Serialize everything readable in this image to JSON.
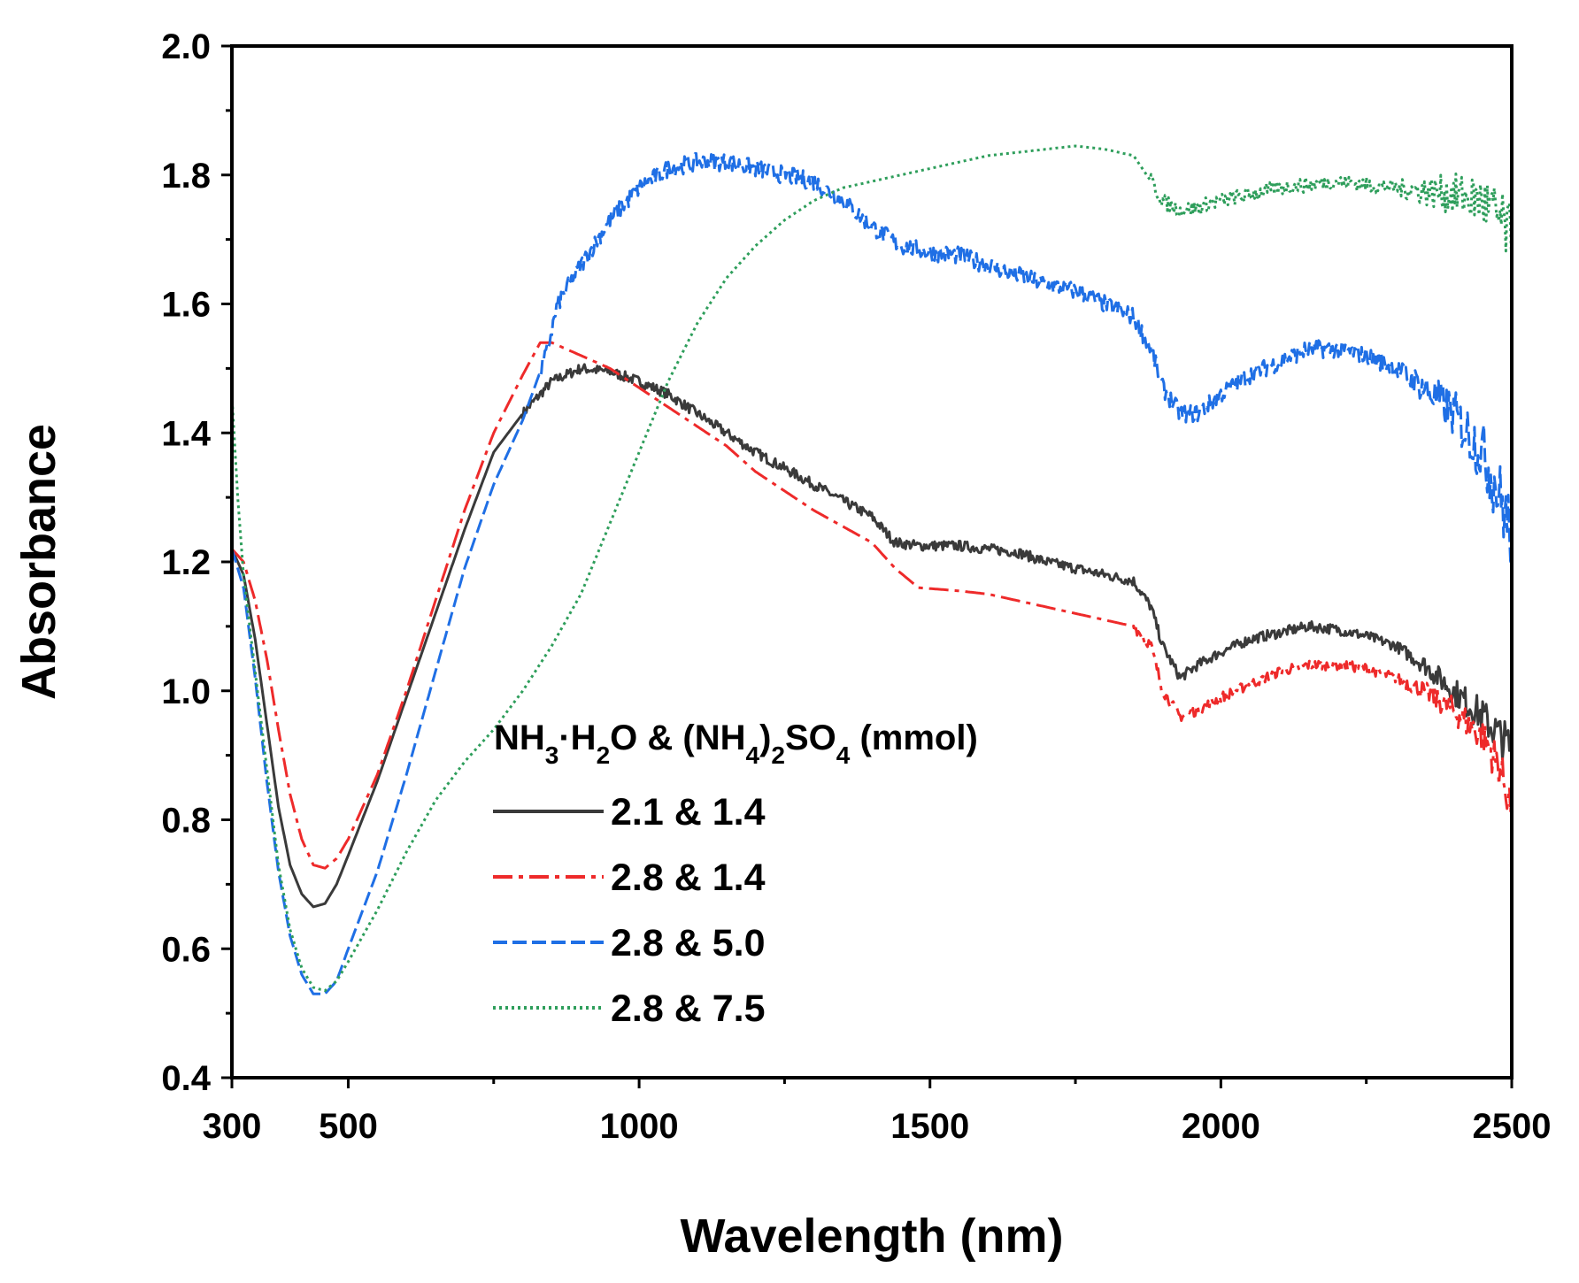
{
  "chart_data": {
    "type": "line",
    "title": "",
    "xlabel": "Wavelength (nm)",
    "ylabel": "Absorbance",
    "xlim": [
      300,
      2500
    ],
    "ylim": [
      0.4,
      2.0
    ],
    "x_ticks": [
      300,
      500,
      1000,
      1500,
      2000,
      2500
    ],
    "x_tick_labels": [
      "300",
      "500",
      "1000",
      "1500",
      "2000",
      "2500"
    ],
    "x_minor_ticks": [
      750,
      1250,
      1750,
      2250
    ],
    "y_ticks": [
      0.4,
      0.6,
      0.8,
      1.0,
      1.2,
      1.4,
      1.6,
      1.8,
      2.0
    ],
    "y_tick_labels": [
      "0.4",
      "0.6",
      "0.8",
      "1.0",
      "1.2",
      "1.4",
      "1.6",
      "1.8",
      "2.0"
    ],
    "grid": false,
    "legend": {
      "title": {
        "parts": [
          {
            "t": "NH"
          },
          {
            "t": "3",
            "sub": true
          },
          {
            "t": "·H"
          },
          {
            "t": "2",
            "sub": true
          },
          {
            "t": "O & (NH"
          },
          {
            "t": "4",
            "sub": true
          },
          {
            "t": ")"
          },
          {
            "t": "2",
            "sub": true
          },
          {
            "t": "SO"
          },
          {
            "t": "4",
            "sub": true
          },
          {
            "t": " (mmol)"
          }
        ]
      },
      "placement": "lower-center"
    },
    "series": [
      {
        "name": "2.1 & 1.4",
        "color": "#3a3a3a",
        "style": "solid",
        "noise": 0.008,
        "noise_from": 800,
        "points": [
          [
            300,
            1.22
          ],
          [
            320,
            1.18
          ],
          [
            340,
            1.08
          ],
          [
            360,
            0.95
          ],
          [
            380,
            0.82
          ],
          [
            400,
            0.73
          ],
          [
            420,
            0.685
          ],
          [
            440,
            0.665
          ],
          [
            460,
            0.67
          ],
          [
            480,
            0.7
          ],
          [
            500,
            0.745
          ],
          [
            550,
            0.86
          ],
          [
            600,
            0.99
          ],
          [
            650,
            1.12
          ],
          [
            700,
            1.25
          ],
          [
            750,
            1.37
          ],
          [
            800,
            1.43
          ],
          [
            850,
            1.48
          ],
          [
            900,
            1.5
          ],
          [
            950,
            1.495
          ],
          [
            1000,
            1.48
          ],
          [
            1050,
            1.46
          ],
          [
            1100,
            1.43
          ],
          [
            1150,
            1.4
          ],
          [
            1200,
            1.37
          ],
          [
            1250,
            1.345
          ],
          [
            1300,
            1.32
          ],
          [
            1350,
            1.295
          ],
          [
            1400,
            1.27
          ],
          [
            1440,
            1.23
          ],
          [
            1480,
            1.225
          ],
          [
            1550,
            1.225
          ],
          [
            1600,
            1.22
          ],
          [
            1650,
            1.215
          ],
          [
            1700,
            1.2
          ],
          [
            1750,
            1.19
          ],
          [
            1800,
            1.18
          ],
          [
            1850,
            1.17
          ],
          [
            1880,
            1.13
          ],
          [
            1900,
            1.07
          ],
          [
            1930,
            1.02
          ],
          [
            1960,
            1.04
          ],
          [
            2000,
            1.06
          ],
          [
            2050,
            1.08
          ],
          [
            2100,
            1.09
          ],
          [
            2150,
            1.1
          ],
          [
            2200,
            1.095
          ],
          [
            2250,
            1.085
          ],
          [
            2300,
            1.07
          ],
          [
            2350,
            1.04
          ],
          [
            2400,
            1.0
          ],
          [
            2450,
            0.96
          ],
          [
            2480,
            0.93
          ],
          [
            2500,
            0.91
          ]
        ]
      },
      {
        "name": "2.8 & 1.4",
        "color": "#ee2a2a",
        "style": "dashdot",
        "noise": 0.008,
        "noise_from": 1850,
        "points": [
          [
            300,
            1.22
          ],
          [
            320,
            1.2
          ],
          [
            340,
            1.14
          ],
          [
            360,
            1.05
          ],
          [
            380,
            0.94
          ],
          [
            400,
            0.84
          ],
          [
            420,
            0.77
          ],
          [
            440,
            0.73
          ],
          [
            460,
            0.725
          ],
          [
            480,
            0.74
          ],
          [
            500,
            0.77
          ],
          [
            550,
            0.87
          ],
          [
            600,
            1.0
          ],
          [
            650,
            1.14
          ],
          [
            700,
            1.28
          ],
          [
            750,
            1.4
          ],
          [
            800,
            1.49
          ],
          [
            830,
            1.54
          ],
          [
            850,
            1.54
          ],
          [
            900,
            1.52
          ],
          [
            950,
            1.5
          ],
          [
            1000,
            1.47
          ],
          [
            1050,
            1.44
          ],
          [
            1100,
            1.41
          ],
          [
            1150,
            1.38
          ],
          [
            1200,
            1.34
          ],
          [
            1250,
            1.31
          ],
          [
            1300,
            1.28
          ],
          [
            1350,
            1.255
          ],
          [
            1400,
            1.23
          ],
          [
            1440,
            1.19
          ],
          [
            1480,
            1.16
          ],
          [
            1550,
            1.155
          ],
          [
            1600,
            1.15
          ],
          [
            1650,
            1.14
          ],
          [
            1700,
            1.13
          ],
          [
            1750,
            1.12
          ],
          [
            1800,
            1.11
          ],
          [
            1850,
            1.1
          ],
          [
            1880,
            1.07
          ],
          [
            1900,
            1.0
          ],
          [
            1930,
            0.96
          ],
          [
            1960,
            0.97
          ],
          [
            2000,
            0.99
          ],
          [
            2050,
            1.01
          ],
          [
            2100,
            1.03
          ],
          [
            2150,
            1.04
          ],
          [
            2200,
            1.04
          ],
          [
            2250,
            1.035
          ],
          [
            2300,
            1.02
          ],
          [
            2350,
            1.0
          ],
          [
            2400,
            0.97
          ],
          [
            2450,
            0.93
          ],
          [
            2480,
            0.88
          ],
          [
            2500,
            0.82
          ]
        ]
      },
      {
        "name": "2.8 & 5.0",
        "color": "#1f6fe5",
        "style": "dashed",
        "noise": 0.014,
        "noise_from": 830,
        "points": [
          [
            300,
            1.22
          ],
          [
            320,
            1.16
          ],
          [
            340,
            1.02
          ],
          [
            360,
            0.86
          ],
          [
            380,
            0.72
          ],
          [
            400,
            0.62
          ],
          [
            420,
            0.56
          ],
          [
            440,
            0.53
          ],
          [
            460,
            0.53
          ],
          [
            480,
            0.55
          ],
          [
            500,
            0.6
          ],
          [
            550,
            0.72
          ],
          [
            600,
            0.87
          ],
          [
            650,
            1.03
          ],
          [
            700,
            1.19
          ],
          [
            750,
            1.32
          ],
          [
            800,
            1.42
          ],
          [
            840,
            1.52
          ],
          [
            860,
            1.6
          ],
          [
            900,
            1.66
          ],
          [
            950,
            1.73
          ],
          [
            1000,
            1.78
          ],
          [
            1050,
            1.81
          ],
          [
            1100,
            1.82
          ],
          [
            1150,
            1.82
          ],
          [
            1200,
            1.81
          ],
          [
            1250,
            1.8
          ],
          [
            1300,
            1.79
          ],
          [
            1350,
            1.76
          ],
          [
            1400,
            1.72
          ],
          [
            1450,
            1.69
          ],
          [
            1500,
            1.68
          ],
          [
            1550,
            1.675
          ],
          [
            1600,
            1.66
          ],
          [
            1650,
            1.645
          ],
          [
            1700,
            1.63
          ],
          [
            1750,
            1.62
          ],
          [
            1800,
            1.6
          ],
          [
            1850,
            1.58
          ],
          [
            1880,
            1.53
          ],
          [
            1900,
            1.47
          ],
          [
            1930,
            1.43
          ],
          [
            1960,
            1.43
          ],
          [
            2000,
            1.46
          ],
          [
            2050,
            1.49
          ],
          [
            2100,
            1.51
          ],
          [
            2150,
            1.53
          ],
          [
            2200,
            1.53
          ],
          [
            2250,
            1.52
          ],
          [
            2300,
            1.5
          ],
          [
            2350,
            1.47
          ],
          [
            2400,
            1.43
          ],
          [
            2450,
            1.37
          ],
          [
            2480,
            1.3
          ],
          [
            2500,
            1.24
          ]
        ]
      },
      {
        "name": "2.8 & 7.5",
        "color": "#2e9e5b",
        "style": "dotted",
        "noise": 0.012,
        "noise_from": 1880,
        "points": [
          [
            300,
            1.46
          ],
          [
            310,
            1.3
          ],
          [
            320,
            1.18
          ],
          [
            340,
            1.03
          ],
          [
            360,
            0.88
          ],
          [
            380,
            0.73
          ],
          [
            400,
            0.63
          ],
          [
            420,
            0.57
          ],
          [
            440,
            0.54
          ],
          [
            460,
            0.535
          ],
          [
            480,
            0.55
          ],
          [
            500,
            0.58
          ],
          [
            550,
            0.66
          ],
          [
            600,
            0.75
          ],
          [
            650,
            0.83
          ],
          [
            700,
            0.89
          ],
          [
            750,
            0.94
          ],
          [
            800,
            1.0
          ],
          [
            850,
            1.07
          ],
          [
            900,
            1.15
          ],
          [
            950,
            1.26
          ],
          [
            1000,
            1.37
          ],
          [
            1050,
            1.48
          ],
          [
            1100,
            1.57
          ],
          [
            1150,
            1.64
          ],
          [
            1200,
            1.69
          ],
          [
            1250,
            1.73
          ],
          [
            1300,
            1.76
          ],
          [
            1350,
            1.78
          ],
          [
            1400,
            1.79
          ],
          [
            1450,
            1.8
          ],
          [
            1500,
            1.81
          ],
          [
            1550,
            1.82
          ],
          [
            1600,
            1.83
          ],
          [
            1650,
            1.835
          ],
          [
            1700,
            1.84
          ],
          [
            1750,
            1.845
          ],
          [
            1800,
            1.84
          ],
          [
            1850,
            1.83
          ],
          [
            1880,
            1.79
          ],
          [
            1900,
            1.76
          ],
          [
            1930,
            1.745
          ],
          [
            1960,
            1.75
          ],
          [
            2000,
            1.76
          ],
          [
            2050,
            1.77
          ],
          [
            2100,
            1.78
          ],
          [
            2150,
            1.785
          ],
          [
            2200,
            1.79
          ],
          [
            2250,
            1.785
          ],
          [
            2300,
            1.78
          ],
          [
            2350,
            1.775
          ],
          [
            2400,
            1.77
          ],
          [
            2450,
            1.76
          ],
          [
            2480,
            1.73
          ],
          [
            2500,
            1.7
          ]
        ]
      }
    ]
  }
}
